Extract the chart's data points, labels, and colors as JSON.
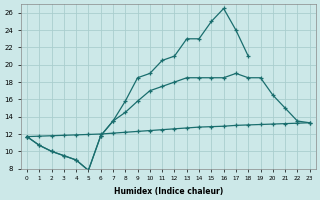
{
  "xlabel": "Humidex (Indice chaleur)",
  "bg_color": "#cce8e8",
  "grid_color": "#aacece",
  "line_color": "#1a6e6e",
  "xlim": [
    -0.5,
    23.5
  ],
  "ylim": [
    8,
    27
  ],
  "xticks": [
    0,
    1,
    2,
    3,
    4,
    5,
    6,
    7,
    8,
    9,
    10,
    11,
    12,
    13,
    14,
    15,
    16,
    17,
    18,
    19,
    20,
    21,
    22,
    23
  ],
  "yticks": [
    8,
    10,
    12,
    14,
    16,
    18,
    20,
    22,
    24,
    26
  ],
  "line1_x": [
    0,
    1,
    2,
    3,
    4,
    5,
    6,
    7,
    8,
    9,
    10,
    11,
    12,
    13,
    14,
    15,
    16,
    17,
    18
  ],
  "line1_y": [
    11.7,
    10.7,
    10.0,
    9.5,
    9.0,
    7.8,
    11.8,
    13.5,
    15.8,
    18.5,
    19.0,
    20.5,
    21.0,
    23.0,
    23.0,
    25.0,
    26.5,
    24.0,
    21.0
  ],
  "line2_x": [
    0,
    1,
    2,
    3,
    4,
    5,
    6,
    7,
    8,
    9,
    10,
    11,
    12,
    13,
    14,
    15,
    16,
    17,
    18,
    19,
    20,
    21,
    22,
    23
  ],
  "line2_y": [
    11.7,
    10.7,
    10.0,
    9.5,
    9.0,
    7.8,
    11.8,
    13.5,
    14.5,
    15.8,
    17.0,
    17.5,
    18.0,
    18.5,
    18.5,
    18.5,
    18.5,
    19.0,
    18.5,
    18.5,
    16.5,
    15.0,
    13.5,
    13.3
  ],
  "line3_x": [
    0,
    1,
    2,
    3,
    4,
    5,
    6,
    7,
    8,
    9,
    10,
    11,
    12,
    13,
    14,
    15,
    16,
    17,
    18,
    19,
    20,
    21,
    22,
    23
  ],
  "line3_y": [
    11.7,
    11.75,
    11.8,
    11.85,
    11.9,
    11.95,
    12.0,
    12.1,
    12.2,
    12.3,
    12.4,
    12.5,
    12.6,
    12.7,
    12.8,
    12.85,
    12.9,
    13.0,
    13.05,
    13.1,
    13.15,
    13.2,
    13.25,
    13.3
  ],
  "marker_size": 3.5,
  "linewidth": 0.9
}
